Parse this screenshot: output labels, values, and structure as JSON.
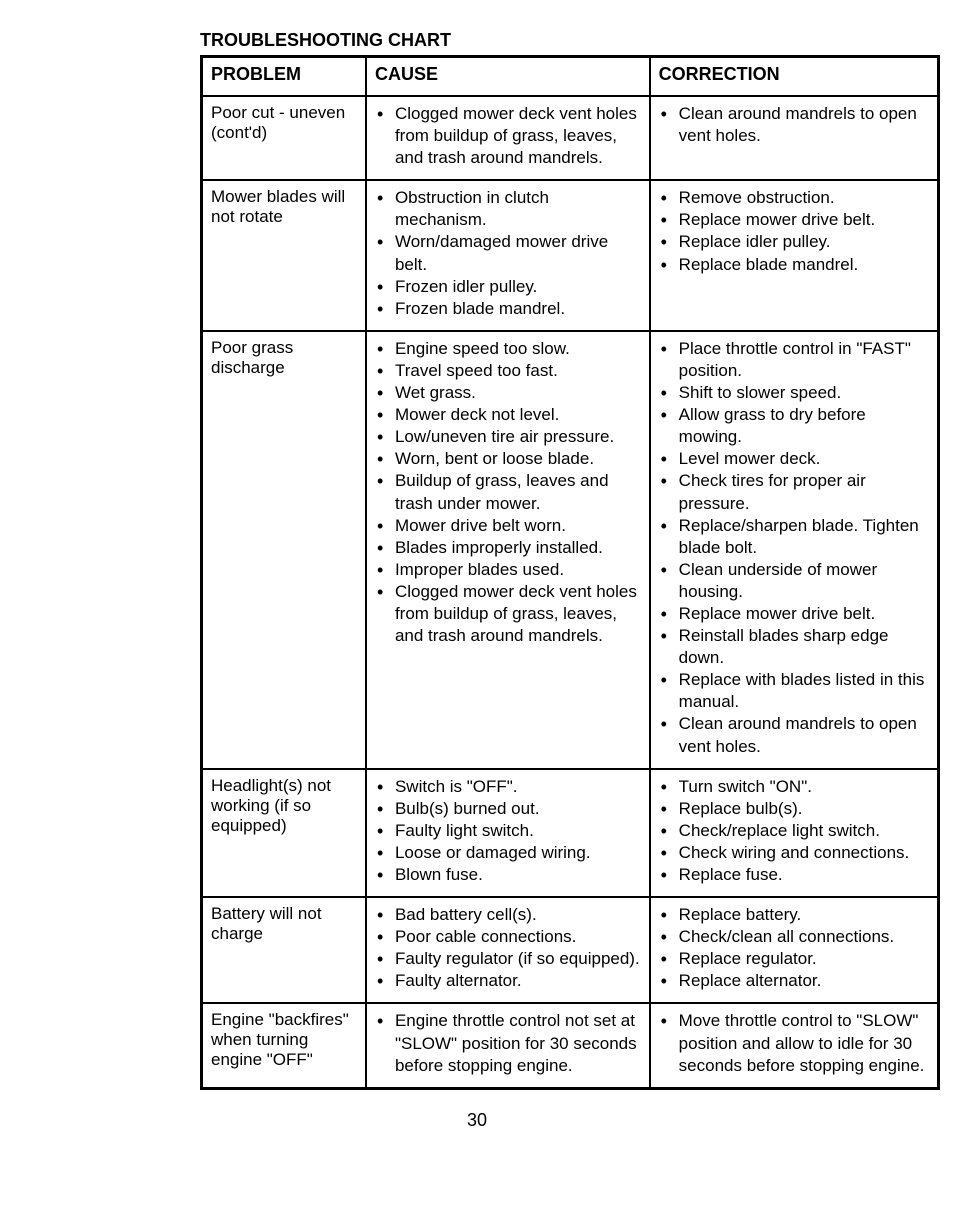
{
  "title": "TROUBLESHOOTING CHART",
  "headers": {
    "problem": "PROBLEM",
    "cause": "CAUSE",
    "correction": "CORRECTION"
  },
  "rows": [
    {
      "problem": "Poor cut - uneven (cont'd)",
      "causes": [
        "Clogged mower deck vent holes from buildup of grass, leaves, and trash around mandrels."
      ],
      "corrections": [
        "Clean around mandrels to open vent holes."
      ]
    },
    {
      "problem": "Mower blades will not rotate",
      "causes": [
        "Obstruction in clutch mechanism.",
        "Worn/damaged mower drive belt.",
        "Frozen idler pulley.",
        "Frozen blade mandrel."
      ],
      "corrections": [
        "Remove obstruction.",
        "Replace mower drive belt.",
        "Replace idler pulley.",
        "Replace blade mandrel."
      ]
    },
    {
      "problem": "Poor grass discharge",
      "causes": [
        "Engine speed too slow.",
        "Travel speed too fast.",
        "Wet grass.",
        "Mower deck not level.",
        "Low/uneven tire air pressure.",
        "Worn, bent or loose blade.",
        "Buildup of grass, leaves and trash under mower.",
        "Mower drive belt worn.",
        "Blades improperly installed.",
        "Improper blades used.",
        "Clogged mower deck vent holes from buildup of grass, leaves, and trash around mandrels."
      ],
      "corrections": [
        "Place throttle control in \"FAST\" position.",
        "Shift to slower speed.",
        "Allow grass to dry before mowing.",
        "Level mower deck.",
        "Check tires for proper air pressure.",
        "Replace/sharpen blade. Tighten blade bolt.",
        "Clean underside of mower housing.",
        "Replace mower drive belt.",
        "Reinstall blades sharp edge down.",
        "Replace with blades listed in this manual.",
        "Clean around mandrels to open vent holes."
      ]
    },
    {
      "problem": "Headlight(s) not working (if so equipped)",
      "causes": [
        "Switch is \"OFF\".",
        "Bulb(s) burned out.",
        "Faulty light switch.",
        "Loose or damaged wiring.",
        "Blown fuse."
      ],
      "corrections": [
        "Turn switch \"ON\".",
        "Replace bulb(s).",
        "Check/replace light switch.",
        "Check wiring and connections.",
        "Replace fuse."
      ]
    },
    {
      "problem": "Battery will not charge",
      "causes": [
        "Bad battery cell(s).",
        "Poor cable connections.",
        "Faulty regulator (if so equipped).",
        "Faulty alternator."
      ],
      "corrections": [
        "Replace battery.",
        "Check/clean all connections.",
        "Replace regulator.",
        "Replace alternator."
      ]
    },
    {
      "problem": "Engine \"backfires\" when turning engine \"OFF\"",
      "causes": [
        "Engine throttle control not set at \"SLOW\" position for 30 seconds before stopping engine."
      ],
      "corrections": [
        "Move throttle control to \"SLOW\" position and allow to idle for 30 seconds before stopping engine."
      ]
    }
  ],
  "pageNumber": "30"
}
